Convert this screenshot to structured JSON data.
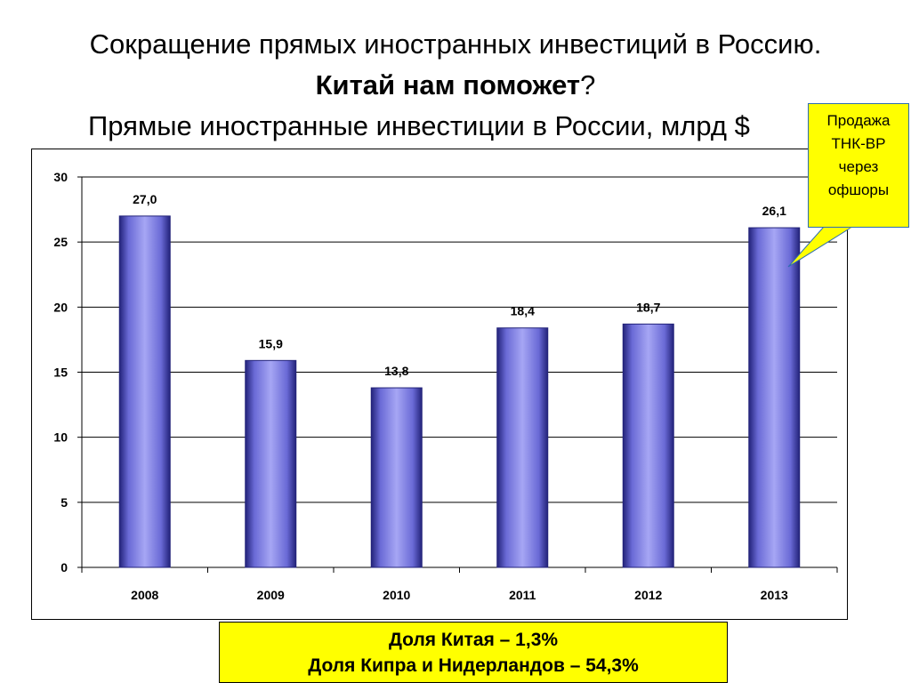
{
  "slide": {
    "title_line1": "Сокращение прямых иностранных инвестиций в Россию.",
    "title_line2_bold": "Китай нам поможет",
    "title_line2_rest": "?",
    "chart_caption": "Прямые иностранные инвестиции в России, млрд $"
  },
  "callout": {
    "lines": [
      "Продажа",
      "ТНК-BP",
      "через",
      "офшоры"
    ]
  },
  "info_box": {
    "line1": "Доля Китая – 1,3%",
    "line2": "Доля Кипра и Нидерландов – 54,3%"
  },
  "colors": {
    "bar_fill": "#8a8ae6",
    "bar_edge_dark": "#23237a",
    "callout_fill": "#ffff00",
    "info_fill": "#ffff00"
  },
  "chart_data": {
    "type": "bar",
    "title": "Прямые иностранные инвестиции в России, млрд $",
    "categories": [
      "2008",
      "2009",
      "2010",
      "2011",
      "2012",
      "2013"
    ],
    "values": [
      27.0,
      15.9,
      13.8,
      18.4,
      18.7,
      26.1
    ],
    "data_labels": [
      "27,0",
      "15,9",
      "13,8",
      "18,4",
      "18,7",
      "26,1"
    ],
    "y_ticks": [
      0,
      5,
      10,
      15,
      20,
      25,
      30
    ],
    "ylim": [
      0,
      30
    ],
    "xlabel": "",
    "ylabel": "",
    "grid": true,
    "legend": "none"
  }
}
